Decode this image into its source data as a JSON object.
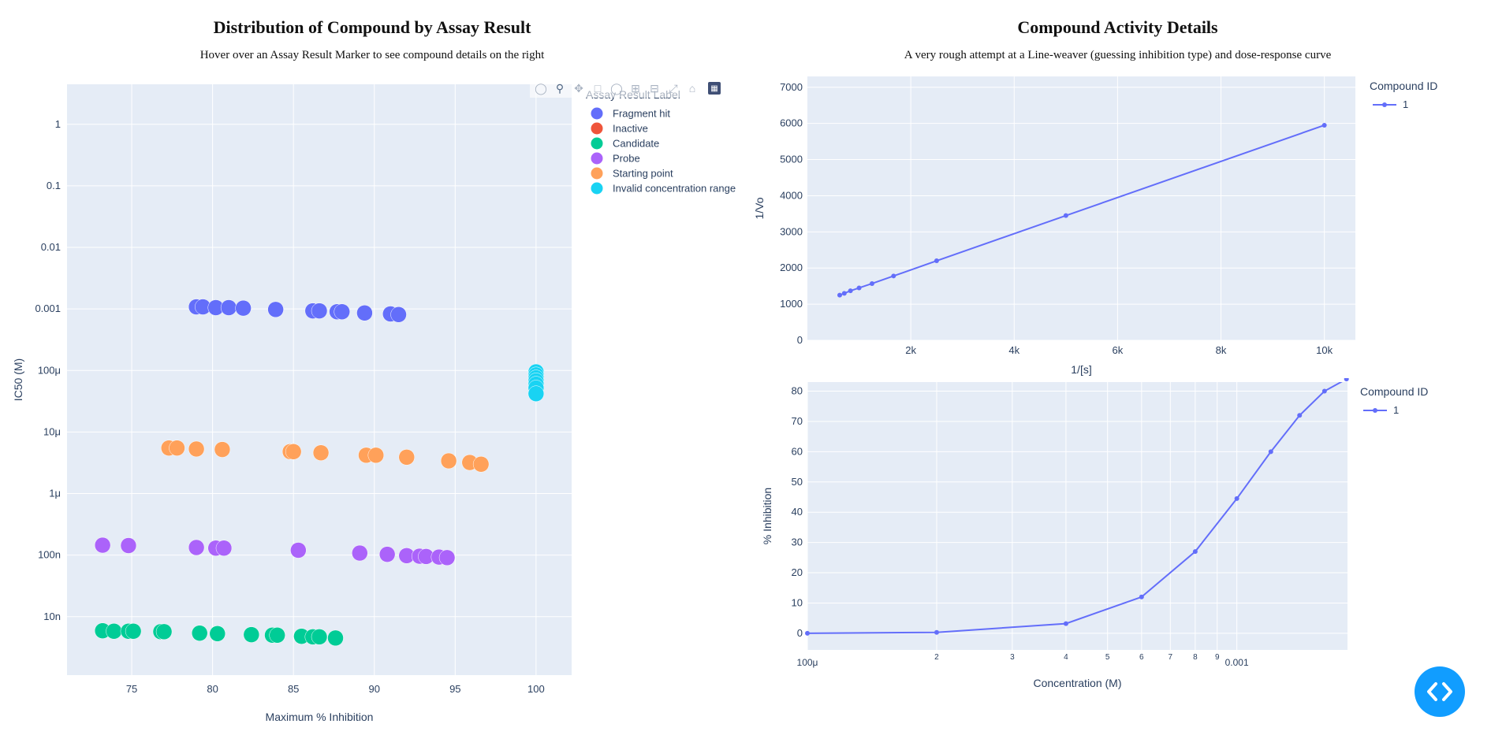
{
  "left_panel": {
    "title": "Distribution of Compound by Assay Result",
    "subtitle": "Hover over an Assay Result Marker to see compound details on the right"
  },
  "right_panel": {
    "title": "Compound Activity Details",
    "subtitle": "A very rough attempt at a Line-weaver (guessing inhibition type) and dose-response curve"
  },
  "modebar_icons": [
    "camera-icon",
    "zoom-icon",
    "pan-icon",
    "box-select-icon",
    "lasso-icon",
    "zoom-in-icon",
    "zoom-out-icon",
    "autoscale-icon",
    "reset-axes-icon",
    "plotly-logo-icon"
  ],
  "fab": {
    "icon": "code-toggle-icon",
    "color": "#119dff"
  },
  "chart_data": [
    {
      "id": "scatter",
      "type": "scatter",
      "xlabel": "Maximum % Inhibition",
      "ylabel": "IC50 (M)",
      "xlim": [
        71,
        102.2
      ],
      "ylim_log10": [
        -8.95,
        0.65
      ],
      "yscale": "log",
      "xticks": [
        75,
        80,
        85,
        90,
        95,
        100
      ],
      "yticks": [
        {
          "v": 1,
          "label": "1"
        },
        {
          "v": 0.1,
          "label": "0.1"
        },
        {
          "v": 0.01,
          "label": "0.01"
        },
        {
          "v": 0.001,
          "label": "0.001"
        },
        {
          "v": 0.0001,
          "label": "100μ"
        },
        {
          "v": 1e-05,
          "label": "10μ"
        },
        {
          "v": 1e-06,
          "label": "1μ"
        },
        {
          "v": 1e-07,
          "label": "100n"
        },
        {
          "v": 1e-08,
          "label": "10n"
        }
      ],
      "legend_title": "Assay Result Label",
      "legend_position": "top-right",
      "grid": true,
      "series": [
        {
          "name": "Fragment hit",
          "color": "#636efa",
          "x": [
            79,
            79.4,
            80.2,
            81,
            81.9,
            83.9,
            86.2,
            86.6,
            87.7,
            88,
            89.4,
            91,
            91.5
          ],
          "y": [
            0.00108,
            0.00108,
            0.00105,
            0.00105,
            0.00103,
            0.00098,
            0.00093,
            0.00093,
            0.0009,
            0.0009,
            0.00086,
            0.00083,
            0.00081
          ]
        },
        {
          "name": "Inactive",
          "color": "#ef553b",
          "x": [],
          "y": []
        },
        {
          "name": "Candidate",
          "color": "#00cc96",
          "x": [
            73.2,
            73.9,
            74.8,
            75.1,
            76.8,
            77,
            79.2,
            80.3,
            82.4,
            83.7,
            84,
            85.5,
            86.2,
            86.6,
            87.6
          ],
          "y": [
            5.9e-09,
            5.8e-09,
            5.8e-09,
            5.8e-09,
            5.7e-09,
            5.7e-09,
            5.4e-09,
            5.3e-09,
            5.1e-09,
            5e-09,
            5e-09,
            4.8e-09,
            4.7e-09,
            4.7e-09,
            4.5e-09
          ]
        },
        {
          "name": "Probe",
          "color": "#ab63fa",
          "x": [
            73.2,
            74.8,
            79,
            80.2,
            80.7,
            85.3,
            89.1,
            90.8,
            92,
            92.8,
            93.2,
            94,
            94.5
          ],
          "y": [
            1.45e-07,
            1.43e-07,
            1.33e-07,
            1.3e-07,
            1.3e-07,
            1.2e-07,
            1.08e-07,
            1.03e-07,
            9.8e-08,
            9.6e-08,
            9.5e-08,
            9.3e-08,
            9.1e-08
          ]
        },
        {
          "name": "Starting point",
          "color": "#ffa15a",
          "x": [
            77.3,
            77.8,
            79,
            80.6,
            84.8,
            85,
            86.7,
            89.5,
            90.1,
            92,
            94.6,
            95.9,
            96.6
          ],
          "y": [
            5.5e-06,
            5.5e-06,
            5.3e-06,
            5.2e-06,
            4.8e-06,
            4.8e-06,
            4.6e-06,
            4.2e-06,
            4.2e-06,
            3.9e-06,
            3.4e-06,
            3.2e-06,
            3e-06
          ]
        },
        {
          "name": "Invalid concentration range",
          "color": "#19d3f3",
          "x": [
            100,
            100,
            100,
            100,
            100,
            100,
            100
          ],
          "y": [
            9.5e-05,
            8.5e-05,
            7.6e-05,
            6.8e-05,
            6e-05,
            5.2e-05,
            4.2e-05
          ]
        }
      ]
    },
    {
      "id": "lineweaver",
      "type": "line",
      "xlabel": "1/[s]",
      "ylabel": "1/Vo",
      "xlim": [
        0,
        10600
      ],
      "ylim": [
        0,
        7300
      ],
      "xticks": [
        {
          "v": 2000,
          "label": "2k"
        },
        {
          "v": 4000,
          "label": "4k"
        },
        {
          "v": 6000,
          "label": "6k"
        },
        {
          "v": 8000,
          "label": "8k"
        },
        {
          "v": 10000,
          "label": "10k"
        }
      ],
      "yticks": [
        0,
        1000,
        2000,
        3000,
        4000,
        5000,
        6000,
        7000
      ],
      "legend_title": "Compound ID",
      "legend_position": "top-right",
      "grid": true,
      "series": [
        {
          "name": "1",
          "color": "#636efa",
          "x": [
            625,
            714,
            833,
            1000,
            1250,
            1667,
            2500,
            5000,
            10000
          ],
          "y": [
            1250,
            1300,
            1370,
            1450,
            1570,
            1780,
            2200,
            3450,
            5950
          ]
        }
      ]
    },
    {
      "id": "dose_response",
      "type": "line",
      "xlabel": "Concentration (M)",
      "ylabel": "% Inhibition",
      "xscale": "log",
      "xlim": [
        0.0001,
        0.00181
      ],
      "ylim": [
        -5.5,
        83
      ],
      "xticks": [
        {
          "v": 0.0001,
          "label": "100μ",
          "major": true
        },
        {
          "v": 0.0002,
          "label": "2"
        },
        {
          "v": 0.0003,
          "label": "3"
        },
        {
          "v": 0.0004,
          "label": "4"
        },
        {
          "v": 0.0005,
          "label": "5"
        },
        {
          "v": 0.0006,
          "label": "6"
        },
        {
          "v": 0.0007,
          "label": "7"
        },
        {
          "v": 0.0008,
          "label": "8"
        },
        {
          "v": 0.0009,
          "label": "9"
        },
        {
          "v": 0.001,
          "label": "0.001",
          "major": true
        }
      ],
      "yticks": [
        0,
        10,
        20,
        30,
        40,
        50,
        60,
        70,
        80
      ],
      "legend_title": "Compound ID",
      "legend_position": "top-right",
      "grid": true,
      "series": [
        {
          "name": "1",
          "color": "#636efa",
          "x": [
            0.0001,
            0.0002,
            0.0004,
            0.0006,
            0.0008,
            0.001,
            0.0012,
            0.0014,
            0.0016,
            0.0018
          ],
          "y": [
            0,
            0.3,
            3.2,
            12,
            27,
            44.5,
            60,
            72,
            80,
            84
          ]
        }
      ]
    }
  ]
}
